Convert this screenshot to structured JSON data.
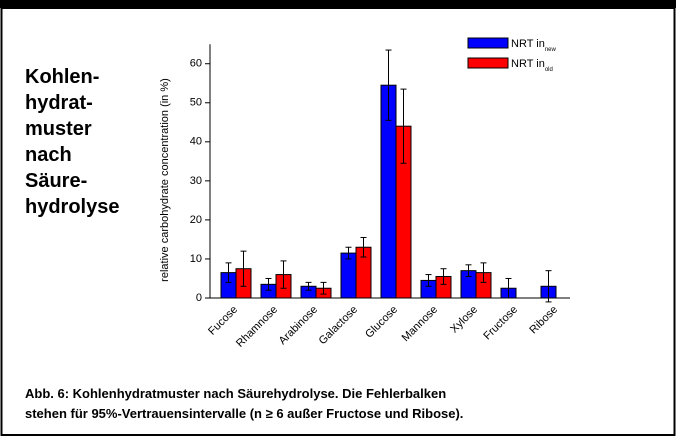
{
  "side_label": [
    "Kohlen-",
    "hydrat-",
    "muster",
    "nach",
    "Säure-",
    "hydrolyse"
  ],
  "caption": [
    "Abb. 6: Kohlenhydratmuster nach Säurehydrolyse. Die Fehlerbalken",
    "stehen für 95%-Vertrauensintervalle (n ≥ 6 außer Fructose und Ribose)."
  ],
  "chart_data": {
    "type": "bar",
    "y_label": "relative carbohydrate concentration (in %)",
    "categories": [
      "Fucose",
      "Rhamnose",
      "Arabinose",
      "Galactose",
      "Glucose",
      "Mannose",
      "Xylose",
      "Fructose",
      "Ribose"
    ],
    "series": [
      {
        "name": "NRT in",
        "name_subscript": "new",
        "color": "#0000ff",
        "values": [
          6.5,
          3.5,
          3,
          11.5,
          54.5,
          4.5,
          7,
          2.5,
          3
        ],
        "errors": [
          2.5,
          1.5,
          1,
          1.5,
          9,
          1.5,
          1.5,
          2.5,
          4
        ]
      },
      {
        "name": "NRT in",
        "name_subscript": "old",
        "color": "#ff0000",
        "values": [
          7.5,
          6,
          2.5,
          13,
          44,
          5.5,
          6.5,
          null,
          null
        ],
        "errors": [
          4.5,
          3.5,
          1.5,
          2.5,
          9.5,
          2,
          2.5,
          null,
          null
        ]
      }
    ],
    "ylim": [
      0,
      65
    ],
    "yticks": [
      0,
      10,
      20,
      30,
      40,
      50,
      60
    ],
    "legend": "top-right"
  }
}
